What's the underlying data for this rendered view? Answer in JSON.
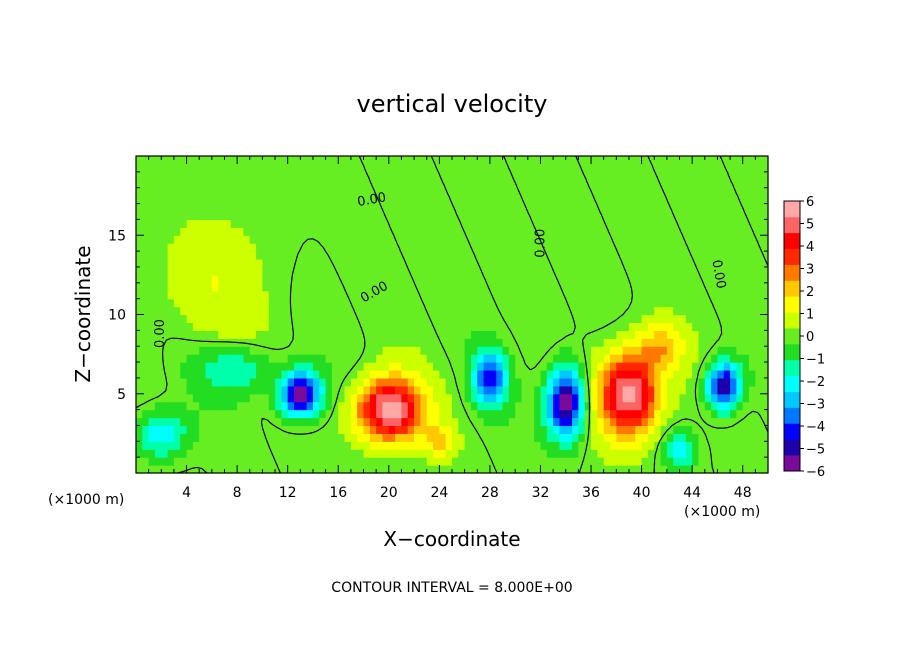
{
  "chart_data": {
    "type": "heatmap",
    "title": "vertical velocity",
    "xlabel": "X−coordinate",
    "ylabel": "Z−coordinate",
    "x_unit_left": "(×1000 m)",
    "x_unit_right": "(×1000 m)",
    "xlim": [
      0,
      50
    ],
    "ylim": [
      0,
      20
    ],
    "x_ticks": [
      4,
      8,
      12,
      16,
      20,
      24,
      28,
      32,
      36,
      40,
      44,
      48
    ],
    "y_ticks": [
      5,
      10,
      15
    ],
    "x_tick_labels": [
      "4",
      "8",
      "12",
      "16",
      "20",
      "24",
      "28",
      "32",
      "36",
      "40",
      "44",
      "48"
    ],
    "y_tick_labels": [
      "5",
      "10",
      "15"
    ],
    "colorbar": {
      "range": [
        -6,
        6
      ],
      "labels": [
        "6",
        "5",
        "4",
        "3",
        "2",
        "1",
        "0",
        "−1",
        "−2",
        "−3",
        "−4",
        "−5",
        "−6"
      ],
      "colors": [
        "#7a0a9a",
        "#1e00aa",
        "#0000ff",
        "#0078ff",
        "#00c8ff",
        "#00ffff",
        "#00ffaa",
        "#22dd22",
        "#66ee22",
        "#ccff00",
        "#ffff00",
        "#ffc800",
        "#ff7800",
        "#ff2800",
        "#ff0000",
        "#ff6464",
        "#ffa8a8"
      ]
    },
    "contour_labels": [
      "0.00",
      "0.00",
      "0.00",
      "0.00",
      "0.00"
    ],
    "contour_interval_text": "CONTOUR INTERVAL = 8.000E+00",
    "features": [
      {
        "type": "updraft",
        "x": 20,
        "z": 4.0,
        "w": 6,
        "sx": 2.6,
        "sz": 2.0
      },
      {
        "type": "updraft",
        "x": 39,
        "z": 5.0,
        "w": 6,
        "sx": 2.4,
        "sz": 2.6
      },
      {
        "type": "updraft",
        "x": 24,
        "z": 2.0,
        "w": 2.0,
        "sx": 1.2,
        "sz": 1.0
      },
      {
        "type": "updraft",
        "x": 41.5,
        "z": 8.0,
        "w": 2.0,
        "sx": 1.8,
        "sz": 1.5
      },
      {
        "type": "downdraft",
        "x": 13,
        "z": 5.0,
        "w": -6,
        "sx": 1.6,
        "sz": 1.4
      },
      {
        "type": "downdraft",
        "x": 28,
        "z": 6.0,
        "w": -4.5,
        "sx": 1.3,
        "sz": 1.6
      },
      {
        "type": "downdraft",
        "x": 34,
        "z": 4.5,
        "w": -6,
        "sx": 1.5,
        "sz": 2.2
      },
      {
        "type": "downdraft",
        "x": 46.5,
        "z": 5.5,
        "w": -5.5,
        "sx": 1.3,
        "sz": 1.5
      },
      {
        "type": "downdraft",
        "x": 2,
        "z": 2.5,
        "w": -2.5,
        "sx": 2.0,
        "sz": 1.5
      },
      {
        "type": "downdraft",
        "x": 43,
        "z": 1.5,
        "w": -2.5,
        "sx": 1.2,
        "sz": 1.0
      },
      {
        "type": "downdraft",
        "x": 8,
        "z": 6.5,
        "w": -1.8,
        "sx": 3.0,
        "sz": 1.5
      },
      {
        "type": "weak-up",
        "x": 6,
        "z": 12.0,
        "w": 1.0,
        "sx": 4.0,
        "sz": 4.0
      }
    ]
  }
}
